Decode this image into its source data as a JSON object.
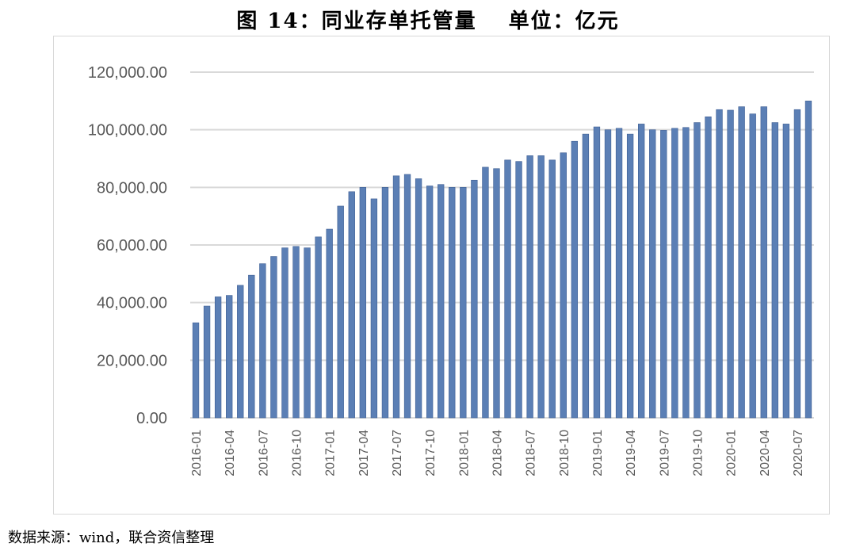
{
  "title": {
    "main": "图 14：同业存单托管量",
    "unit": "单位：亿元"
  },
  "source": "数据来源：wind，联合资信整理",
  "colors": {
    "bar": "#5b7fb5",
    "bar_edge": "#3f5f94",
    "grid": "#d9d9d9",
    "axis_text": "#595959"
  },
  "chart_data": {
    "type": "bar",
    "title": "同业存单托管量",
    "xlabel": "",
    "ylabel": "",
    "ylim": [
      0,
      120000
    ],
    "yticks": [
      "0.00",
      "20,000.00",
      "40,000.00",
      "60,000.00",
      "80,000.00",
      "100,000.00",
      "120,000.00"
    ],
    "grid": "horizontal",
    "legend": "none",
    "categories": [
      "2016-01",
      "2016-02",
      "2016-03",
      "2016-04",
      "2016-05",
      "2016-06",
      "2016-07",
      "2016-08",
      "2016-09",
      "2016-10",
      "2016-11",
      "2016-12",
      "2017-01",
      "2017-02",
      "2017-03",
      "2017-04",
      "2017-05",
      "2017-06",
      "2017-07",
      "2017-08",
      "2017-09",
      "2017-10",
      "2017-11",
      "2017-12",
      "2018-01",
      "2018-02",
      "2018-03",
      "2018-04",
      "2018-05",
      "2018-06",
      "2018-07",
      "2018-08",
      "2018-09",
      "2018-10",
      "2018-11",
      "2018-12",
      "2019-01",
      "2019-02",
      "2019-03",
      "2019-04",
      "2019-05",
      "2019-06",
      "2019-07",
      "2019-08",
      "2019-09",
      "2019-10",
      "2019-11",
      "2019-12",
      "2020-01",
      "2020-02",
      "2020-03",
      "2020-04",
      "2020-05",
      "2020-06",
      "2020-07",
      "2020-08"
    ],
    "xtick_labels": [
      "2016-01",
      "2016-04",
      "2016-07",
      "2016-10",
      "2017-01",
      "2017-04",
      "2017-07",
      "2017-10",
      "2018-01",
      "2018-04",
      "2018-07",
      "2018-10",
      "2019-01",
      "2019-04",
      "2019-07",
      "2019-10",
      "2020-01",
      "2020-04",
      "2020-07"
    ],
    "values": [
      33000,
      38800,
      42000,
      42500,
      46000,
      49500,
      53500,
      56000,
      59000,
      59500,
      59000,
      62800,
      65500,
      73500,
      78500,
      80000,
      76000,
      80000,
      84000,
      84500,
      83000,
      80500,
      81000,
      80000,
      80000,
      82500,
      87000,
      86500,
      89500,
      89000,
      91000,
      91000,
      89500,
      92000,
      96000,
      98500,
      101000,
      100000,
      100500,
      98500,
      102000,
      100000,
      99800,
      100500,
      100800,
      102500,
      104500,
      107000,
      106800,
      108000,
      105500,
      108000,
      102500,
      102000,
      107000,
      110000
    ]
  }
}
